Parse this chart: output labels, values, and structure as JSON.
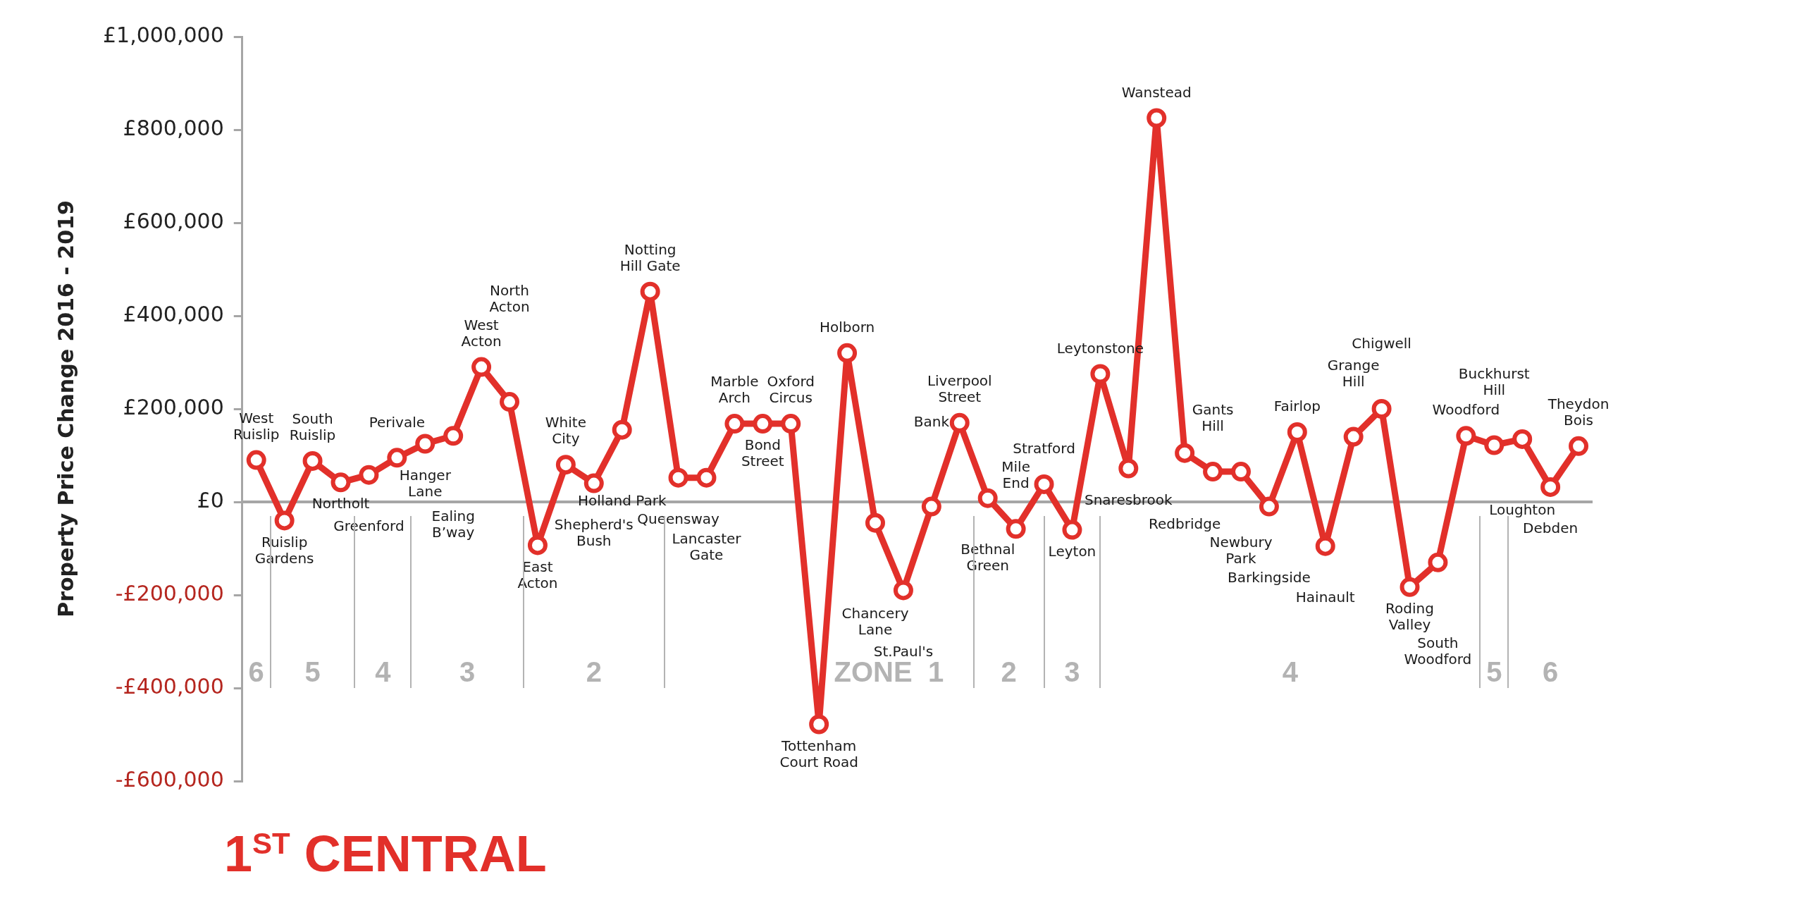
{
  "chart_data": {
    "type": "line",
    "title": "1$^{ST}$ CENTRAL",
    "ylabel": "Property Price Change 2016 - 2019",
    "categories": [
      "West Ruislip",
      "Ruislip Gardens",
      "South Ruislip",
      "Northolt",
      "Greenford",
      "Perivale",
      "Hanger Lane",
      "Ealing B’way",
      "West Acton",
      "North Acton",
      "East Acton",
      "White City",
      "Shepherd's Bush",
      "Holland Park",
      "Notting Hill Gate",
      "Queensway",
      "Lancaster Gate",
      "Marble Arch",
      "Bond Street",
      "Oxford Circus",
      "Tottenham Court Road",
      "Holborn",
      "Chancery Lane",
      "St.Paul's",
      "Bank",
      "Liverpool Street",
      "Bethnal Green",
      "Mile End",
      "Stratford",
      "Leyton",
      "Leytonstone",
      "Snaresbrook",
      "Wanstead",
      "Redbridge",
      "Gants Hill",
      "Newbury Park",
      "Barkingside",
      "Fairlop",
      "Hainault",
      "Grange Hill",
      "Chigwell",
      "Roding Valley",
      "South Woodford",
      "Woodford",
      "Buckhurst Hill",
      "Loughton",
      "Debden",
      "Theydon Bois"
    ],
    "series": [
      {
        "color": "#e2302a",
        "values": [
          90000,
          -40000,
          88000,
          42000,
          58000,
          95000,
          125000,
          142000,
          290000,
          215000,
          -93000,
          80000,
          40000,
          155000,
          452000,
          52000,
          52000,
          168000,
          168000,
          168000,
          -478000,
          320000,
          -45000,
          -190000,
          -10000,
          170000,
          8000,
          -58000,
          38000,
          -60000,
          275000,
          72000,
          825000,
          105000,
          65000,
          65000,
          -10000,
          150000,
          -95000,
          140000,
          200000,
          -183000,
          -130000,
          142000,
          122000,
          135000,
          32000,
          120000
        ]
      }
    ],
    "ylim": [
      -600000,
      1000000
    ],
    "yticks": [
      {
        "value": -600000,
        "label": "-£600,000"
      },
      {
        "value": -400000,
        "label": "-£400,000"
      },
      {
        "value": -200000,
        "label": "-£200,000"
      },
      {
        "value": 0,
        "label": "£0"
      },
      {
        "value": 200000,
        "label": "£200,000"
      },
      {
        "value": 400000,
        "label": "£400,000"
      },
      {
        "value": 600000,
        "label": "£600,000"
      },
      {
        "value": 800000,
        "label": "£800,000"
      },
      {
        "value": 1000000,
        "label": "£1,000,000"
      }
    ],
    "ref_lines": [
      {
        "axis": "y",
        "value": 0,
        "color": "#a6a6a6"
      }
    ],
    "annotations": [
      "6",
      "5",
      "4",
      "3",
      "2",
      "ZONE  1",
      "2",
      "3",
      "4",
      "5",
      "6"
    ],
    "marker": "circle",
    "grid": false,
    "legend": false,
    "tick_labels": "y"
  }
}
